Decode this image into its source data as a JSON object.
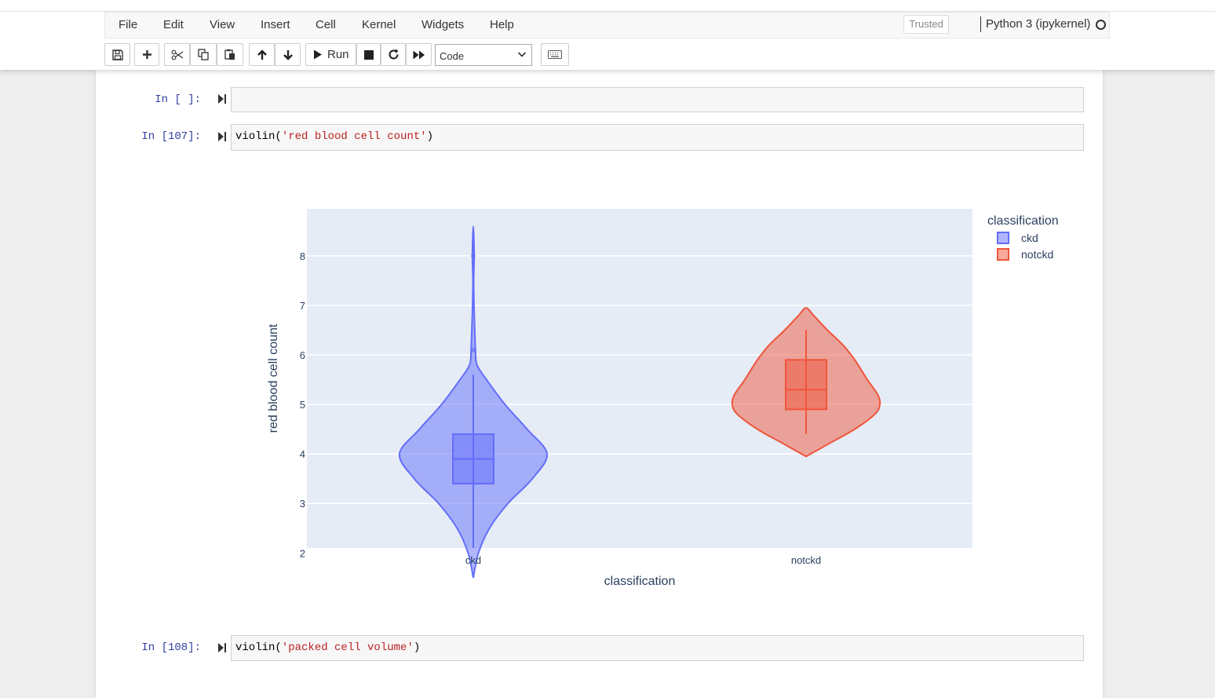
{
  "menu": {
    "items": [
      "File",
      "Edit",
      "View",
      "Insert",
      "Cell",
      "Kernel",
      "Widgets",
      "Help"
    ],
    "trusted": "Trusted",
    "kernel": "Python 3 (ipykernel)"
  },
  "toolbar": {
    "run_label": "Run",
    "cell_type": "Code",
    "icons": [
      "save-icon",
      "plus-icon",
      "cut-icon",
      "copy-icon",
      "paste-icon",
      "arrow-up-icon",
      "arrow-down-icon",
      "play-icon",
      "stop-icon",
      "restart-icon",
      "fast-forward-icon",
      "keyboard-icon"
    ]
  },
  "cells": [
    {
      "prompt": "In [ ]:",
      "code_fn": "",
      "code_str": "",
      "code_end": ""
    },
    {
      "prompt": "In [107]:",
      "code_fn": "violin(",
      "code_str": "'red blood cell count'",
      "code_end": ")"
    },
    {
      "prompt": "In [108]:",
      "code_fn": "violin(",
      "code_str": "'packed cell volume'",
      "code_end": ")"
    }
  ],
  "chart_data": {
    "type": "violin",
    "categories": [
      "ckd",
      "notckd"
    ],
    "xlabel": "classification",
    "ylabel": "red blood cell count",
    "ylim": [
      2.1,
      8.95
    ],
    "yticks": [
      2,
      3,
      4,
      5,
      6,
      7,
      8
    ],
    "legend_title": "classification",
    "legend_position": "top-right",
    "grid": true,
    "series": [
      {
        "name": "ckd",
        "color": "#636efa",
        "box": {
          "q1": 3.4,
          "median": 3.9,
          "q3": 4.4,
          "whisker_low": 2.1,
          "whisker_high": 5.6
        },
        "range": [
          1.5,
          8.6
        ],
        "outliers": [
          6.1,
          8.0
        ],
        "density": [
          [
            1.5,
            0.0
          ],
          [
            2.0,
            0.07
          ],
          [
            2.5,
            0.22
          ],
          [
            3.0,
            0.47
          ],
          [
            3.5,
            0.8
          ],
          [
            4.0,
            1.0
          ],
          [
            4.5,
            0.73
          ],
          [
            5.0,
            0.43
          ],
          [
            5.5,
            0.18
          ],
          [
            5.8,
            0.05
          ],
          [
            6.1,
            0.03
          ],
          [
            6.5,
            0.02
          ],
          [
            7.0,
            0.01
          ],
          [
            7.5,
            0.005
          ],
          [
            8.0,
            0.012
          ],
          [
            8.6,
            0.0
          ]
        ]
      },
      {
        "name": "notckd",
        "color": "#ef553b",
        "box": {
          "q1": 4.9,
          "median": 5.3,
          "q3": 5.9,
          "whisker_low": 4.4,
          "whisker_high": 6.5
        },
        "range": [
          3.95,
          6.95
        ],
        "outliers": [],
        "density": [
          [
            3.95,
            0.0
          ],
          [
            4.2,
            0.3
          ],
          [
            4.5,
            0.66
          ],
          [
            4.8,
            0.93
          ],
          [
            5.0,
            1.0
          ],
          [
            5.2,
            0.97
          ],
          [
            5.5,
            0.83
          ],
          [
            5.9,
            0.66
          ],
          [
            6.2,
            0.5
          ],
          [
            6.5,
            0.29
          ],
          [
            6.8,
            0.1
          ],
          [
            6.95,
            0.0
          ]
        ]
      }
    ]
  }
}
